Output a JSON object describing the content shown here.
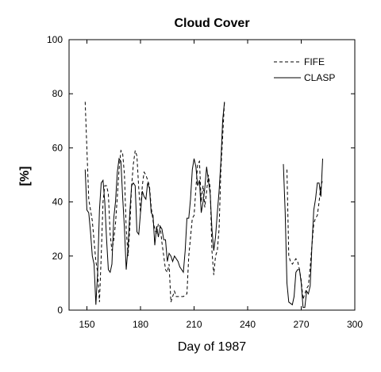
{
  "chart_data": {
    "type": "line",
    "title": "Cloud Cover",
    "xlabel": "Day of 1987",
    "ylabel": "[%]",
    "xlim": [
      140,
      300
    ],
    "ylim": [
      0,
      100
    ],
    "xticks": [
      150,
      180,
      210,
      240,
      270,
      300
    ],
    "yticks": [
      0,
      20,
      40,
      60,
      80,
      100
    ],
    "grid": false,
    "legend_position": "top-right",
    "series": [
      {
        "name": "FIFE",
        "style": "dashed",
        "color": "#000000",
        "segments": [
          [
            [
              149,
              77
            ],
            [
              151,
              41
            ],
            [
              153,
              33
            ],
            [
              155,
              18
            ],
            [
              156,
              14
            ],
            [
              157,
              3
            ],
            [
              158,
              20
            ],
            [
              159,
              40
            ],
            [
              160,
              46
            ],
            [
              161,
              46
            ],
            [
              162,
              43
            ],
            [
              163,
              28
            ],
            [
              164,
              22
            ],
            [
              165,
              26
            ],
            [
              166,
              32
            ],
            [
              167,
              42
            ],
            [
              168,
              52
            ],
            [
              169,
              59
            ],
            [
              170,
              58
            ],
            [
              171,
              50
            ],
            [
              172,
              30
            ],
            [
              173,
              20
            ],
            [
              174,
              30
            ],
            [
              175,
              46
            ],
            [
              176,
              54
            ],
            [
              177,
              59
            ],
            [
              178,
              57
            ],
            [
              179,
              45
            ],
            [
              180,
              36
            ],
            [
              181,
              46
            ],
            [
              182,
              51
            ],
            [
              183,
              50
            ],
            [
              184,
              48
            ],
            [
              185,
              46
            ],
            [
              186,
              38
            ],
            [
              187,
              33
            ],
            [
              188,
              30
            ],
            [
              189,
              28
            ],
            [
              190,
              32
            ],
            [
              191,
              31
            ],
            [
              192,
              25
            ],
            [
              193,
              20
            ],
            [
              194,
              15
            ],
            [
              195,
              14
            ],
            [
              196,
              17
            ],
            [
              197,
              3
            ],
            [
              198,
              5
            ],
            [
              199,
              7
            ],
            [
              200,
              5
            ],
            [
              202,
              5
            ],
            [
              204,
              5
            ],
            [
              206,
              6
            ],
            [
              207,
              20
            ],
            [
              209,
              34
            ],
            [
              210,
              35
            ],
            [
              211,
              45
            ],
            [
              212,
              54
            ],
            [
              213,
              55
            ],
            [
              214,
              40
            ],
            [
              215,
              46
            ],
            [
              216,
              38
            ],
            [
              217,
              44
            ],
            [
              218,
              50
            ],
            [
              219,
              45
            ],
            [
              220,
              22
            ],
            [
              221,
              13
            ],
            [
              222,
              20
            ],
            [
              223,
              22
            ],
            [
              224,
              30
            ],
            [
              225,
              52
            ],
            [
              226,
              64
            ],
            [
              227,
              77
            ]
          ],
          [
            [
              262,
              52
            ],
            [
              263,
              20
            ],
            [
              264,
              18
            ],
            [
              265,
              17
            ],
            [
              267,
              19
            ],
            [
              268,
              18
            ],
            [
              269,
              15
            ],
            [
              270,
              11
            ],
            [
              271,
              4
            ],
            [
              272,
              6
            ],
            [
              273,
              8
            ],
            [
              274,
              9
            ],
            [
              275,
              16
            ],
            [
              276,
              24
            ],
            [
              277,
              32
            ],
            [
              278,
              34
            ],
            [
              279,
              35
            ],
            [
              280,
              40
            ],
            [
              281,
              46
            ],
            [
              282,
              48
            ]
          ]
        ]
      },
      {
        "name": "CLASP",
        "style": "solid",
        "color": "#000000",
        "segments": [
          [
            [
              149,
              52
            ],
            [
              150,
              37
            ],
            [
              151,
              36
            ],
            [
              152,
              29
            ],
            [
              153,
              20
            ],
            [
              154,
              17
            ],
            [
              155,
              2
            ],
            [
              156,
              14
            ],
            [
              157,
              37
            ],
            [
              158,
              47
            ],
            [
              159,
              48
            ],
            [
              160,
              40
            ],
            [
              161,
              26
            ],
            [
              162,
              15
            ],
            [
              163,
              14
            ],
            [
              164,
              17
            ],
            [
              165,
              34
            ],
            [
              166,
              40
            ],
            [
              167,
              51
            ],
            [
              168,
              56
            ],
            [
              169,
              55
            ],
            [
              170,
              42
            ],
            [
              171,
              30
            ],
            [
              172,
              15
            ],
            [
              173,
              23
            ],
            [
              174,
              36
            ],
            [
              175,
              46
            ],
            [
              176,
              47
            ],
            [
              177,
              46
            ],
            [
              178,
              29
            ],
            [
              179,
              28
            ],
            [
              180,
              36
            ],
            [
              181,
              44
            ],
            [
              182,
              42
            ],
            [
              183,
              41
            ],
            [
              184,
              47
            ],
            [
              185,
              45
            ],
            [
              186,
              36
            ],
            [
              187,
              35
            ],
            [
              188,
              24
            ],
            [
              189,
              31
            ],
            [
              190,
              27
            ],
            [
              191,
              31
            ],
            [
              192,
              30
            ],
            [
              193,
              26
            ],
            [
              194,
              26
            ],
            [
              195,
              18
            ],
            [
              196,
              21
            ],
            [
              197,
              20
            ],
            [
              198,
              18
            ],
            [
              199,
              20
            ],
            [
              201,
              18
            ],
            [
              202,
              16
            ],
            [
              203,
              15
            ],
            [
              204,
              14
            ],
            [
              205,
              22
            ],
            [
              206,
              34
            ],
            [
              207,
              34
            ],
            [
              208,
              41
            ],
            [
              209,
              52
            ],
            [
              210,
              56
            ],
            [
              211,
              53
            ],
            [
              212,
              46
            ],
            [
              213,
              48
            ],
            [
              214,
              36
            ],
            [
              215,
              40
            ],
            [
              216,
              45
            ],
            [
              217,
              53
            ],
            [
              218,
              48
            ],
            [
              219,
              43
            ],
            [
              220,
              30
            ],
            [
              221,
              22
            ],
            [
              222,
              27
            ],
            [
              223,
              36
            ],
            [
              224,
              44
            ],
            [
              225,
              55
            ],
            [
              226,
              70
            ],
            [
              227,
              77
            ]
          ],
          [
            [
              260,
              54
            ],
            [
              261,
              36
            ],
            [
              262,
              10
            ],
            [
              263,
              3
            ],
            [
              265,
              2
            ],
            [
              266,
              5
            ],
            [
              267,
              14
            ],
            [
              268,
              15
            ],
            [
              269,
              15
            ],
            [
              270,
              10
            ],
            [
              271,
              1
            ],
            [
              272,
              1
            ],
            [
              273,
              7
            ],
            [
              274,
              6
            ],
            [
              275,
              9
            ],
            [
              276,
              24
            ],
            [
              277,
              37
            ],
            [
              278,
              41
            ],
            [
              279,
              47
            ],
            [
              280,
              47
            ],
            [
              281,
              42
            ],
            [
              282,
              56
            ]
          ]
        ]
      }
    ]
  }
}
